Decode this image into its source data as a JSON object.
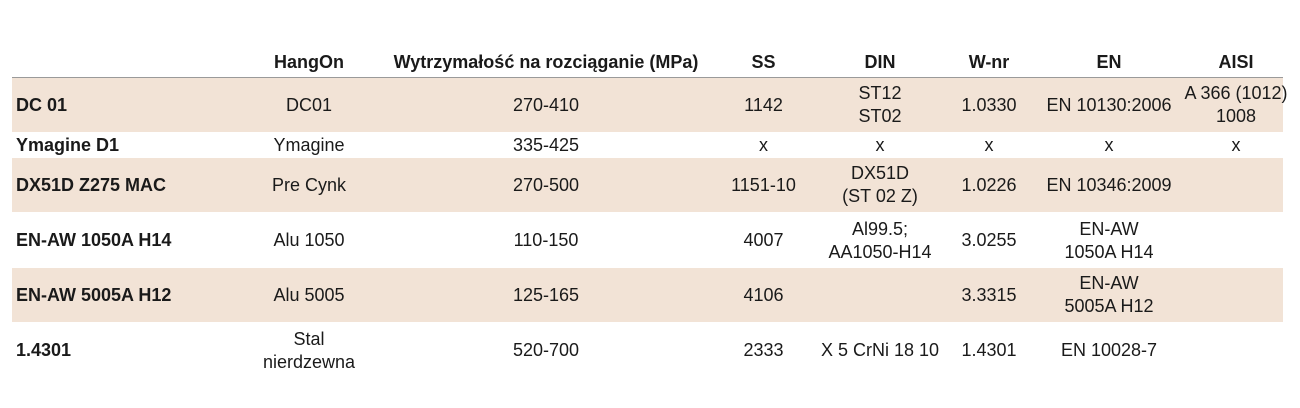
{
  "headers": [
    "",
    "HangOn",
    "Wytrzymałość na rozciąganie (MPa)",
    "SS",
    "DIN",
    "W-nr",
    "EN",
    "AISI"
  ],
  "rows": [
    {
      "name": "DC 01",
      "hangon": [
        "DC01"
      ],
      "strength": "270-410",
      "ss": "1142",
      "din": [
        "ST12",
        "ST02"
      ],
      "wnr": "1.0330",
      "en": [
        "EN 10130:2006"
      ],
      "aisi": [
        "A 366 (1012)",
        "1008"
      ]
    },
    {
      "name": "Ymagine D1",
      "hangon": [
        "Ymagine"
      ],
      "strength": "335-425",
      "ss": "x",
      "din": [
        "x"
      ],
      "wnr": "x",
      "en": [
        "x"
      ],
      "aisi": [
        "x"
      ]
    },
    {
      "name": "DX51D Z275 MAC",
      "hangon": [
        "Pre Cynk"
      ],
      "strength": "270-500",
      "ss": "1151-10",
      "din": [
        "DX51D",
        "(ST 02 Z)"
      ],
      "wnr": "1.0226",
      "en": [
        "EN 10346:2009"
      ],
      "aisi": []
    },
    {
      "name": "EN-AW 1050A H14",
      "hangon": [
        "Alu 1050"
      ],
      "strength": "110-150",
      "ss": "4007",
      "din": [
        "Al99.5;",
        "AA1050-H14"
      ],
      "wnr": "3.0255",
      "en": [
        "EN-AW",
        "1050A H14"
      ],
      "aisi": []
    },
    {
      "name": "EN-AW 5005A H12",
      "hangon": [
        "Alu 5005"
      ],
      "strength": "125-165",
      "ss": "4106",
      "din": [],
      "wnr": "3.3315",
      "en": [
        "EN-AW",
        "5005A H12"
      ],
      "aisi": []
    },
    {
      "name": "1.4301",
      "hangon": [
        "Stal",
        "nierdzewna"
      ],
      "strength": "520-700",
      "ss": "2333",
      "din": [
        "X 5 CrNi 18 10"
      ],
      "wnr": "1.4301",
      "en": [
        "EN 10028-7"
      ],
      "aisi": []
    }
  ]
}
